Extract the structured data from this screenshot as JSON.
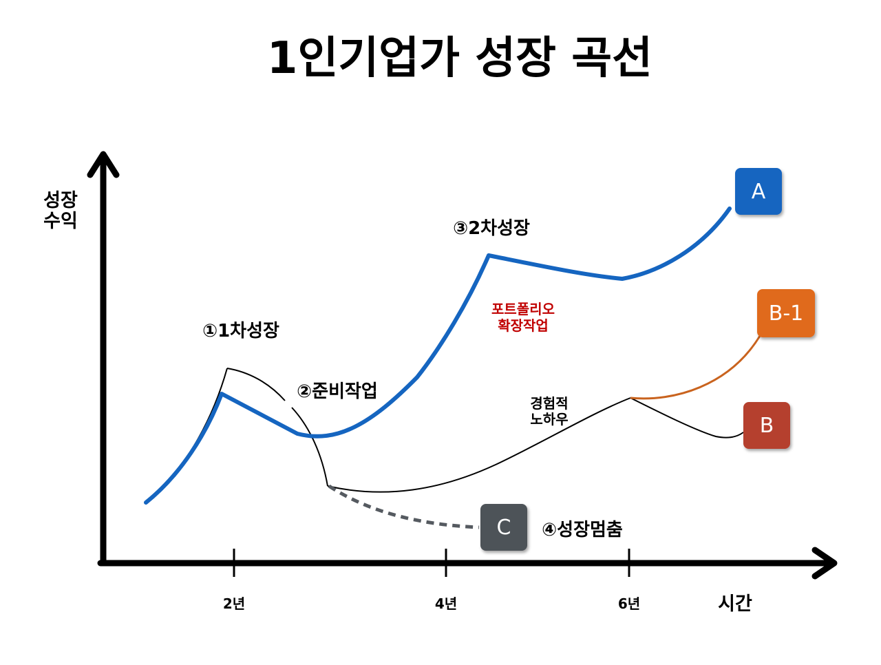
{
  "title": "1인기업가 성장 곡선",
  "axes": {
    "y_label": [
      "성장",
      "수익"
    ],
    "x_label": "시간",
    "x_ticks": [
      "2년",
      "4년",
      "6년"
    ]
  },
  "phases": {
    "growth1": "①1차성장",
    "prep": "②준비작업",
    "growth2": "③2차성장",
    "stop": "④성장멈춤"
  },
  "annotations": {
    "portfolio": [
      "포트폴리오",
      "확장작업"
    ],
    "knowhow": [
      "경험적",
      "노하우"
    ]
  },
  "boxes": {
    "a": {
      "label": "A",
      "color": "#1565c0"
    },
    "b1": {
      "label": "B-1",
      "color": "#e06a1f"
    },
    "b": {
      "label": "B",
      "color": "#b5402e"
    },
    "c": {
      "label": "C",
      "color": "#4e5359"
    }
  },
  "colors": {
    "blue_curve": "#1565c0",
    "orange_curve": "#c9631e",
    "annotation_red": "#c00000",
    "dashed": "#555a60"
  }
}
